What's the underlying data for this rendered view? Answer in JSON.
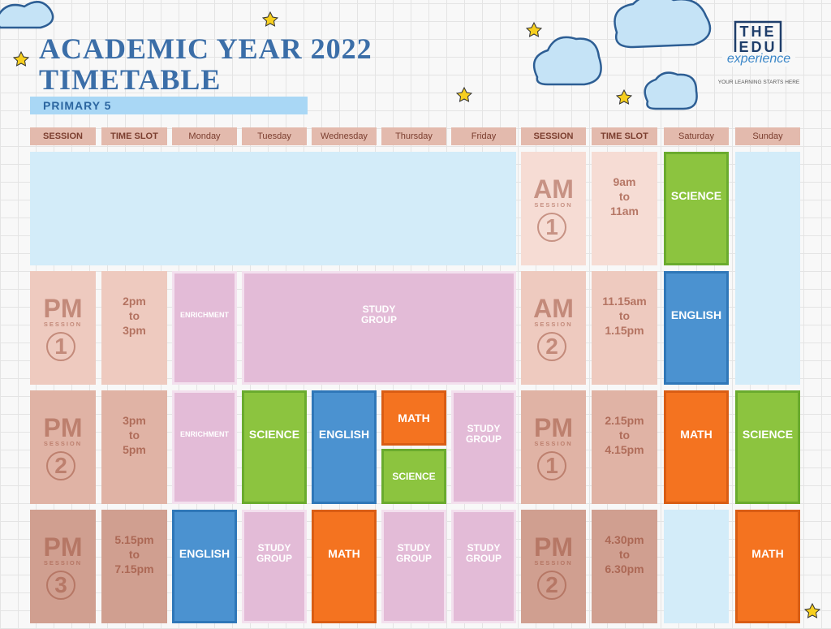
{
  "header": {
    "title_line1": "ACADEMIC YEAR 2022",
    "title_line2": "TIMETABLE",
    "subtitle": "PRIMARY 5"
  },
  "logo": {
    "line1": "THE",
    "line2": "EDU",
    "line3": "experience",
    "tagline": "YOUR LEARNING STARTS HERE"
  },
  "timetable": {
    "headers": [
      "SESSION",
      "TIME SLOT",
      "Monday",
      "Tuesday",
      "Wednesday",
      "Thursday",
      "Friday",
      "SESSION",
      "TIME SLOT",
      "Saturday",
      "Sunday"
    ],
    "weekday": [
      {
        "session": [
          "PM",
          "SESSION",
          "1"
        ],
        "time": [
          "2pm",
          "to",
          "3pm"
        ],
        "classes": [
          "ENRICHMENT",
          "STUDY GROUP"
        ]
      },
      {
        "session": [
          "PM",
          "SESSION",
          "2"
        ],
        "time": [
          "3pm",
          "to",
          "5pm"
        ],
        "classes": [
          "ENRICHMENT",
          "SCIENCE",
          "ENGLISH",
          "MATH",
          "SCIENCE",
          "STUDY GROUP"
        ]
      },
      {
        "session": [
          "PM",
          "SESSION",
          "3"
        ],
        "time": [
          "5.15pm",
          "to",
          "7.15pm"
        ],
        "classes": [
          "ENGLISH",
          "STUDY GROUP",
          "MATH",
          "STUDY GROUP",
          "STUDY GROUP"
        ]
      }
    ],
    "weekend": [
      {
        "session": [
          "AM",
          "SESSION",
          "1"
        ],
        "time": [
          "9am",
          "to",
          "11am"
        ],
        "classes": [
          "SCIENCE"
        ]
      },
      {
        "session": [
          "AM",
          "SESSION",
          "2"
        ],
        "time": [
          "11.15am",
          "to",
          "1.15pm"
        ],
        "classes": [
          "ENGLISH"
        ]
      },
      {
        "session": [
          "PM",
          "SESSION",
          "1"
        ],
        "time": [
          "2.15pm",
          "to",
          "4.15pm"
        ],
        "classes": [
          "MATH",
          "SCIENCE"
        ]
      },
      {
        "session": [
          "PM",
          "SESSION",
          "2"
        ],
        "time": [
          "4.30pm",
          "to",
          "6.30pm"
        ],
        "classes": [
          "MATH"
        ]
      }
    ]
  }
}
